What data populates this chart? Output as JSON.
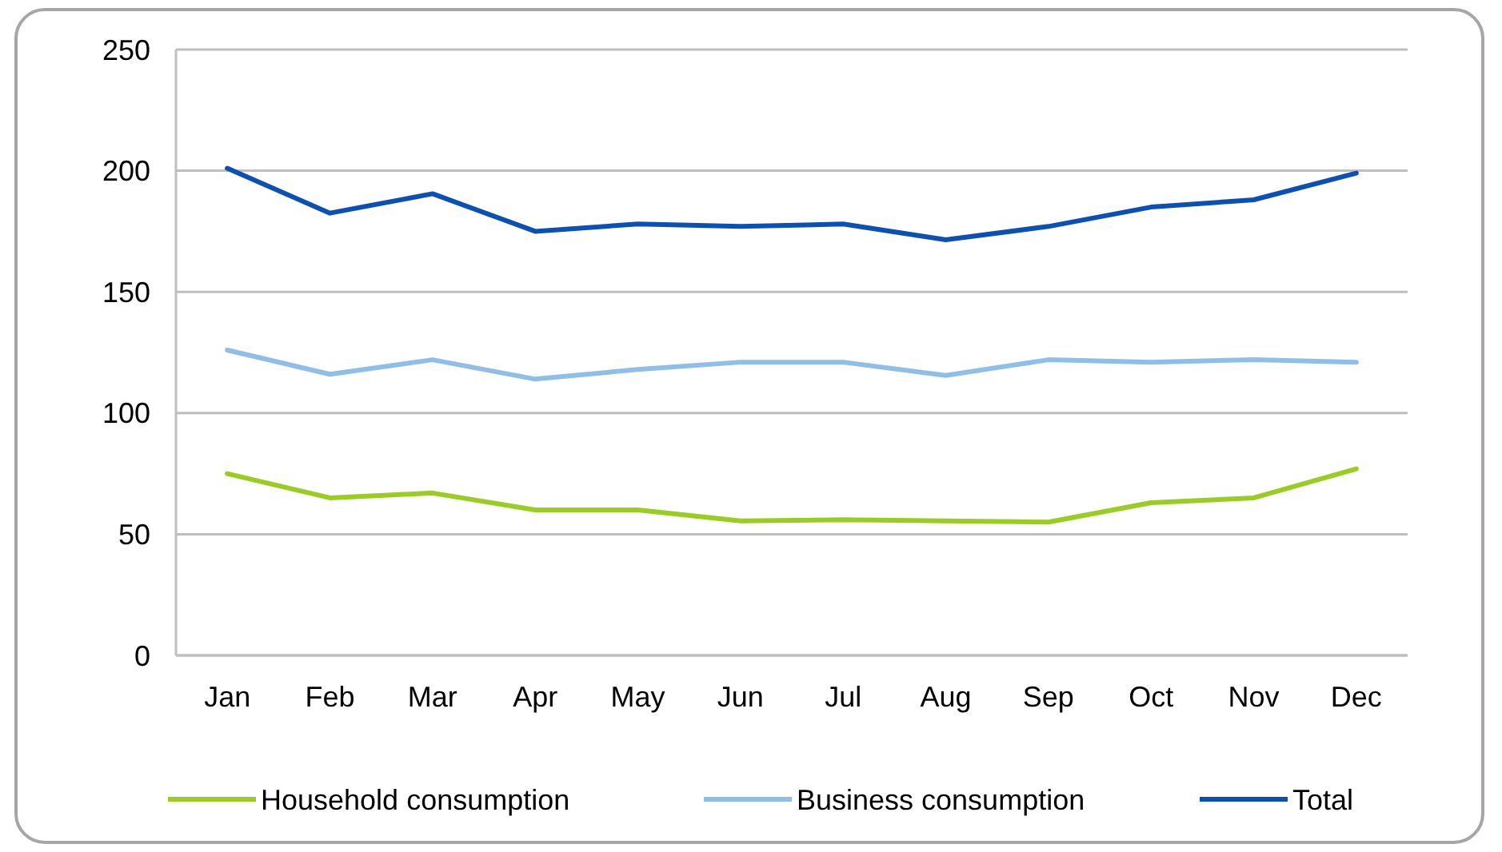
{
  "chart_data": {
    "type": "line",
    "categories": [
      "Jan",
      "Feb",
      "Mar",
      "Apr",
      "May",
      "Jun",
      "Jul",
      "Aug",
      "Sep",
      "Oct",
      "Nov",
      "Dec"
    ],
    "series": [
      {
        "name": "Household consumption",
        "color": "#9acd22",
        "values": [
          75,
          65,
          67,
          60,
          60,
          55.5,
          56,
          55.5,
          55,
          63,
          65,
          77
        ]
      },
      {
        "name": "Business consumption",
        "color": "#8fbfe8",
        "values": [
          126,
          116,
          122,
          114,
          118,
          121,
          121,
          115.5,
          122,
          121,
          122,
          121
        ]
      },
      {
        "name": "Total",
        "color": "#0b50b4",
        "values": [
          201,
          182.5,
          190.5,
          175,
          178,
          177,
          178,
          171.5,
          177,
          185,
          188,
          199
        ]
      }
    ],
    "ylim": [
      0,
      250
    ],
    "yticks": [
      0,
      50,
      100,
      150,
      200,
      250
    ],
    "grid": "y",
    "legend": "bottom",
    "marker": "none",
    "line_style": "solid"
  }
}
